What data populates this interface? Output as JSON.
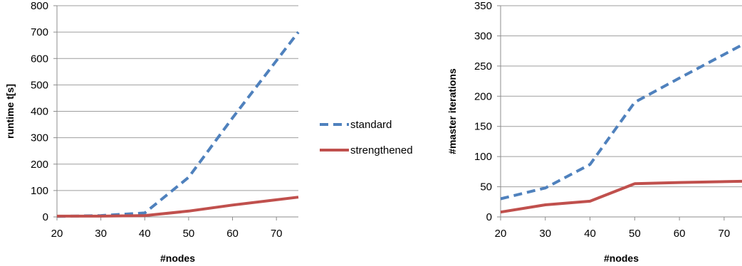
{
  "chart_data": [
    {
      "type": "line",
      "title": "",
      "xlabel": "#nodes",
      "ylabel": "runtime t[s]",
      "xlim": [
        20,
        75
      ],
      "ylim": [
        0,
        800
      ],
      "x_ticks": [
        20,
        30,
        40,
        50,
        60,
        70
      ],
      "y_ticks": [
        0,
        100,
        200,
        300,
        400,
        500,
        600,
        700,
        800
      ],
      "grid": "horizontal",
      "series": [
        {
          "name": "standard",
          "x": [
            20,
            30,
            40,
            50,
            60,
            75
          ],
          "values": [
            2,
            5,
            15,
            150,
            375,
            700
          ]
        },
        {
          "name": "strengthened",
          "x": [
            20,
            30,
            40,
            50,
            60,
            75
          ],
          "values": [
            3,
            3,
            5,
            22,
            45,
            75
          ]
        }
      ]
    },
    {
      "type": "line",
      "title": "",
      "xlabel": "#nodes",
      "ylabel": "#master iterations",
      "xlim": [
        20,
        74
      ],
      "ylim": [
        0,
        350
      ],
      "x_ticks": [
        20,
        30,
        40,
        50,
        60,
        70
      ],
      "y_ticks": [
        0,
        50,
        100,
        150,
        200,
        250,
        300,
        350
      ],
      "grid": "horizontal",
      "series": [
        {
          "name": "standard",
          "x": [
            20,
            30,
            40,
            50,
            60,
            74
          ],
          "values": [
            30,
            48,
            87,
            190,
            230,
            285
          ]
        },
        {
          "name": "strengthened",
          "x": [
            20,
            30,
            40,
            50,
            60,
            74
          ],
          "values": [
            8,
            20,
            26,
            55,
            57,
            59
          ]
        }
      ]
    }
  ],
  "legend": {
    "placement": "between-charts",
    "items": [
      {
        "label": "standard",
        "style": "dashed",
        "color": "#4f81bd"
      },
      {
        "label": "strengthened",
        "style": "solid",
        "color": "#c0504d"
      }
    ]
  },
  "colors": {
    "standard": "#4f81bd",
    "strengthened": "#c0504d",
    "grid": "#9e9e9e",
    "axis": "#8c8c8c"
  }
}
